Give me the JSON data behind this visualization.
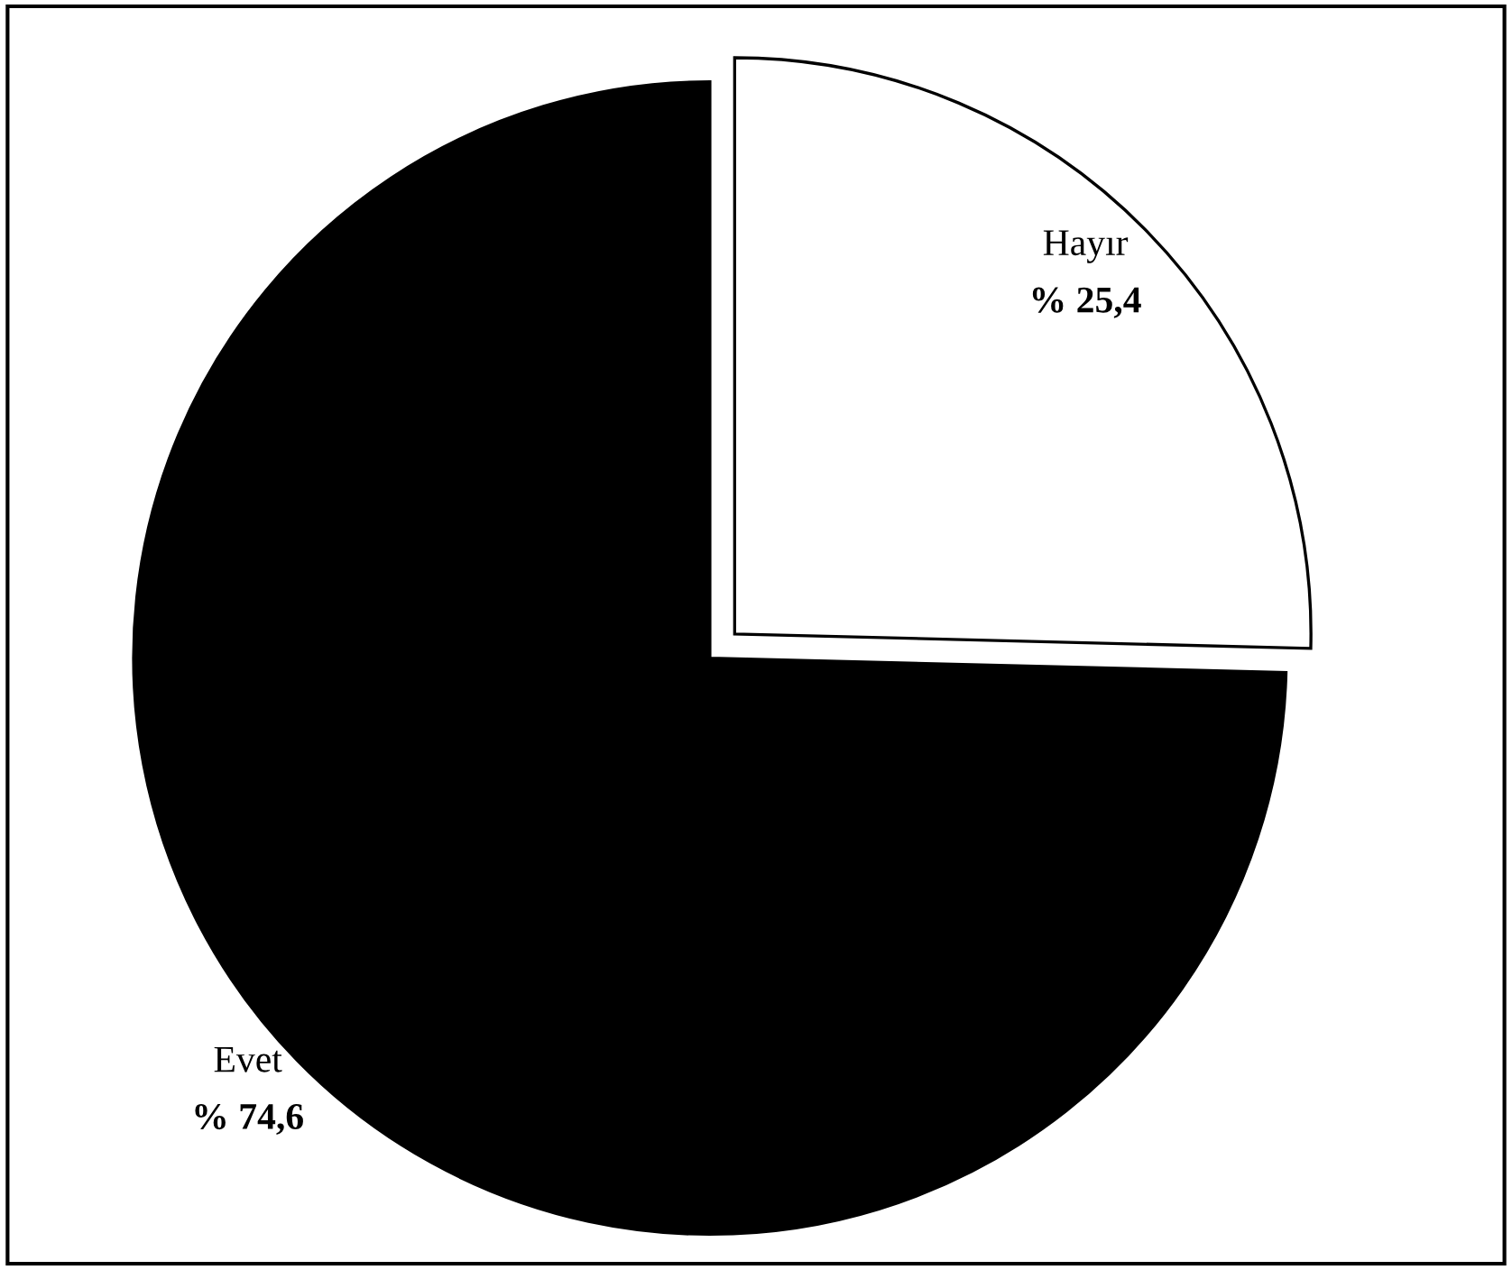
{
  "chart_data": {
    "type": "pie",
    "categories": [
      "Hayır",
      "Evet"
    ],
    "values": [
      25.4,
      74.6
    ],
    "colors": [
      "#ffffff",
      "#000000"
    ],
    "value_labels": [
      "% 25,4",
      "% 74,6"
    ],
    "legend": false
  }
}
